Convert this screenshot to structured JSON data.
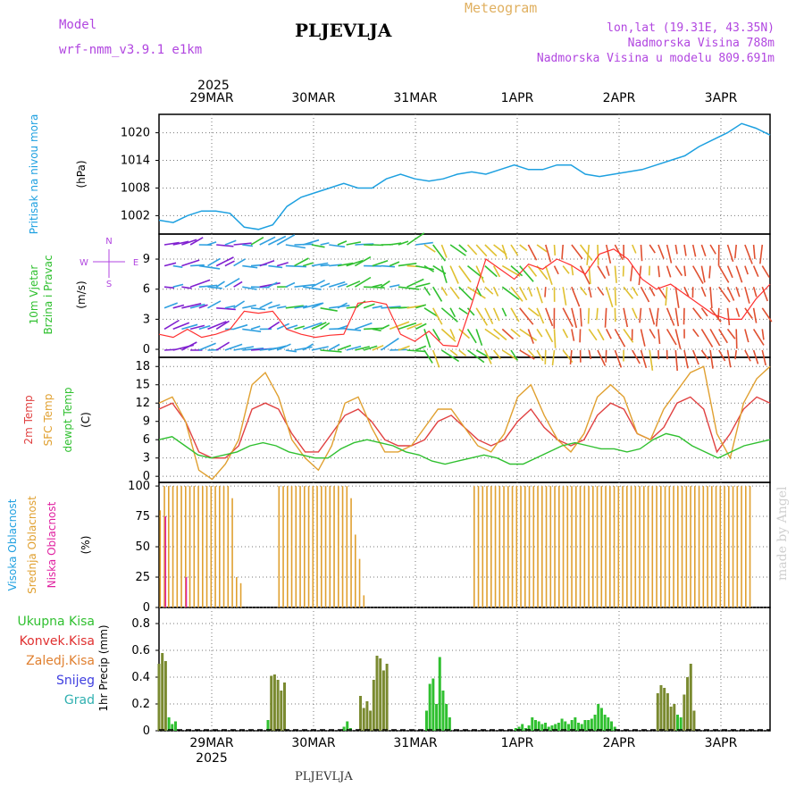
{
  "header": {
    "model_label": "Model",
    "model_version": "wrf-nmm_v3.9.1  e1km",
    "station": "PLJEVLJA",
    "title": "Meteogram",
    "lonlat": "lon,lat (19.31E, 43.35N)",
    "altitude": "Nadmorska Visina 788m",
    "model_altitude": "Nadmorska Visina u modelu 809.691m",
    "footer_station": "PLJEVLJA",
    "made_by": "made by Angel"
  },
  "chart_data": [
    {
      "type": "line",
      "panel": "pressure",
      "x_start": "2025-03-28T12:00",
      "step_hours": 3,
      "years": "2025",
      "days": [
        "29MAR",
        "30MAR",
        "31MAR",
        "1APR",
        "2APR",
        "3APR"
      ],
      "ylabel": "Pritisak na nivou mora",
      "unit": "(hPa)",
      "yticks": [
        1002,
        1008,
        1014,
        1020
      ],
      "ylim": [
        998,
        1024
      ],
      "series": [
        {
          "color": "#1da0e0",
          "values": [
            1001,
            1000.5,
            1002,
            1003,
            1003,
            1002.5,
            999.5,
            999,
            1000,
            1004,
            1006,
            1007,
            1008,
            1009,
            1008,
            1008,
            1010,
            1011,
            1010,
            1009.5,
            1010,
            1011,
            1011.5,
            1011,
            1012,
            1013,
            1012,
            1012,
            1013,
            1013,
            1011,
            1010.5,
            1011,
            1011.5,
            1012,
            1013,
            1014,
            1015,
            1017,
            1018.5,
            1020,
            1022,
            1021,
            1019.5
          ]
        }
      ]
    },
    {
      "type": "line",
      "panel": "wind",
      "ylabel": "10m Vjetar Brzina i Pravac",
      "unit": "(m/s)",
      "compass": {
        "n": "N",
        "w": "W",
        "e": "E",
        "s": "S"
      },
      "yticks": [
        0,
        3,
        6,
        9
      ],
      "ylim": [
        -0.8,
        11.5
      ],
      "series": [
        {
          "color": "#111111",
          "values": [
            null,
            null,
            null,
            null,
            null,
            null,
            null,
            null,
            null,
            null,
            null,
            null,
            null,
            null,
            null,
            null,
            null,
            null,
            null,
            null,
            null,
            null,
            null,
            null,
            null,
            null,
            null,
            null,
            null,
            null,
            null,
            null,
            null,
            null,
            null,
            null,
            null,
            null,
            null,
            null,
            null,
            null,
            null,
            null
          ]
        },
        {
          "color": "#ff3030",
          "values": [
            1.5,
            1.2,
            2,
            1.2,
            1.5,
            2,
            3.8,
            3.6,
            3.8,
            2,
            1.5,
            1.2,
            1.4,
            1.5,
            4.6,
            4.8,
            4.5,
            1.5,
            0.8,
            1.8,
            0.4,
            0.3,
            4.5,
            9,
            8,
            7,
            8.5,
            8,
            9,
            8.4,
            7.5,
            9.5,
            10,
            9,
            7,
            6,
            6.5,
            5.5,
            4.5,
            3.5,
            3,
            3,
            5,
            6.5
          ]
        }
      ]
    },
    {
      "type": "line",
      "panel": "temperature",
      "ylabels": [
        "2m Temp",
        "SFC Temp",
        "dewpt Temp"
      ],
      "unit": "(C)",
      "yticks": [
        0,
        3,
        6,
        9,
        12,
        15,
        18
      ],
      "ylim": [
        -1,
        19.5
      ],
      "series": [
        {
          "name": "2m Temp",
          "color": "#e04040",
          "values": [
            11,
            12,
            9,
            4,
            3,
            3,
            5,
            11,
            12,
            11,
            7,
            4,
            4,
            7,
            10,
            11,
            9,
            6,
            5,
            5,
            6,
            9,
            10,
            8,
            6,
            5,
            6,
            9,
            11,
            8,
            6,
            5,
            6,
            10,
            12,
            11,
            7,
            6,
            8,
            12,
            13,
            11,
            4,
            7,
            11,
            13,
            12
          ]
        },
        {
          "name": "SFC Temp",
          "color": "#e0a030",
          "values": [
            12,
            13,
            9,
            1,
            -0.5,
            2,
            6,
            15,
            17,
            13,
            6,
            3,
            1,
            5,
            12,
            13,
            8,
            4,
            4,
            5,
            8,
            11,
            11,
            8,
            5,
            4,
            7,
            13,
            15,
            10,
            6,
            4,
            7,
            13,
            15,
            13,
            7,
            6,
            11,
            14,
            17,
            18,
            7,
            3,
            12,
            16,
            18
          ]
        },
        {
          "name": "dewpt Temp",
          "color": "#30c030",
          "values": [
            6,
            6.5,
            5,
            3.5,
            3,
            3.5,
            4,
            5,
            5.5,
            5,
            4,
            3.5,
            3,
            3,
            4.5,
            5.5,
            6,
            5.5,
            5,
            4,
            3.5,
            2.5,
            2,
            2.5,
            3,
            3.5,
            3,
            2,
            2,
            3,
            4,
            5,
            5.5,
            5,
            4.5,
            4.5,
            4,
            4.5,
            6,
            7,
            6.5,
            5,
            4,
            3,
            4,
            5,
            5.5,
            6
          ]
        }
      ]
    },
    {
      "type": "bar",
      "panel": "cloud",
      "ylabels": [
        "Visoka Oblacnost",
        "Srednja Oblacnost",
        "Niska Oblacnost"
      ],
      "unit": "(%)",
      "yticks": [
        0,
        25,
        50,
        75,
        100
      ],
      "ylim": [
        0,
        103
      ],
      "series": [
        {
          "name": "Visoka Oblacnost",
          "color": "#20a0e0",
          "values": [
            0,
            0,
            0,
            0,
            0,
            0,
            0,
            0,
            0,
            0,
            0,
            0,
            0,
            0,
            0,
            0,
            0,
            0,
            0,
            0,
            0,
            0,
            0,
            0,
            0,
            0,
            0,
            0,
            0,
            0,
            0,
            0,
            0,
            0,
            0,
            0,
            0,
            0,
            0,
            0,
            0,
            0,
            0,
            0,
            0,
            0,
            0,
            0,
            0,
            0,
            0,
            0,
            0,
            0,
            0,
            0,
            0,
            0,
            0,
            0,
            0,
            0,
            0,
            0,
            0,
            0,
            0,
            0,
            0,
            0,
            0,
            0,
            0,
            0,
            0,
            0,
            0,
            0,
            0,
            0,
            0,
            0,
            0,
            0,
            0,
            0,
            0,
            0,
            0,
            0,
            0,
            0,
            0,
            0,
            0,
            0,
            0,
            0,
            0,
            0,
            0,
            0,
            0,
            0,
            0,
            0,
            0,
            0,
            0,
            0,
            0,
            0,
            0,
            0,
            0,
            0,
            0,
            0,
            0,
            0,
            0,
            0,
            0,
            0,
            0,
            0,
            0,
            0,
            0,
            0,
            0,
            0,
            0,
            0,
            0,
            0,
            0,
            0,
            0,
            0,
            0,
            0,
            0,
            0
          ]
        },
        {
          "name": "Srednja Oblacnost",
          "color": "#e0a030",
          "values": [
            80,
            100,
            100,
            100,
            100,
            100,
            100,
            100,
            100,
            100,
            100,
            100,
            100,
            100,
            100,
            100,
            100,
            90,
            25,
            20,
            0,
            0,
            0,
            0,
            0,
            0,
            0,
            0,
            100,
            100,
            100,
            100,
            100,
            100,
            100,
            100,
            100,
            100,
            100,
            100,
            100,
            100,
            100,
            100,
            100,
            90,
            60,
            40,
            10,
            0,
            0,
            0,
            0,
            0,
            0,
            0,
            0,
            0,
            0,
            0,
            0,
            0,
            0,
            0,
            0,
            0,
            0,
            0,
            0,
            0,
            0,
            0,
            0,
            0,
            100,
            100,
            100,
            100,
            100,
            100,
            100,
            100,
            100,
            100,
            100,
            100,
            100,
            100,
            100,
            100,
            100,
            100,
            100,
            100,
            100,
            100,
            100,
            100,
            100,
            100,
            100,
            100,
            100,
            100,
            100,
            100,
            100,
            100,
            100,
            100,
            100,
            100,
            100,
            100,
            100,
            100,
            100,
            100,
            100,
            100,
            100,
            100,
            100,
            100,
            100,
            100,
            100,
            100,
            100,
            100,
            100,
            100,
            100,
            100,
            100,
            100,
            100,
            100,
            100,
            100,
            0,
            0,
            0,
            0,
            0
          ]
        },
        {
          "name": "Niska Oblacnost",
          "color": "#e020a0",
          "values": [
            0,
            75,
            0,
            0,
            0,
            0,
            25,
            0,
            0,
            0,
            0,
            0,
            0,
            0,
            0,
            0,
            0,
            0,
            0,
            0,
            0,
            0,
            0,
            0,
            0,
            0,
            0,
            0,
            0,
            0,
            0,
            0,
            0,
            0,
            0,
            0,
            0,
            0,
            0,
            0,
            0,
            0,
            0,
            0,
            0,
            0,
            0,
            0,
            0,
            0,
            0,
            0,
            0,
            0,
            0,
            0,
            0,
            0,
            0,
            0,
            0,
            0,
            0,
            0,
            0,
            0,
            0,
            0,
            0,
            0,
            0,
            0,
            0,
            0,
            0,
            0,
            0,
            0,
            0,
            0,
            0,
            0,
            0,
            0,
            0,
            0,
            0,
            0,
            0,
            0,
            0,
            0,
            0,
            0,
            0,
            0,
            0,
            0,
            0,
            0,
            0,
            0,
            0,
            0,
            0,
            0,
            0,
            0,
            0,
            0,
            0,
            0,
            0,
            0,
            0,
            0,
            0,
            0,
            0,
            0,
            0,
            0,
            0,
            0,
            0,
            0,
            0,
            0,
            0,
            0,
            0,
            0,
            0,
            0,
            0,
            0,
            0,
            0,
            0,
            0,
            0,
            0,
            0,
            0,
            0,
            0,
            0,
            0
          ]
        }
      ]
    },
    {
      "type": "bar",
      "panel": "precipitation",
      "ylabel": "1hr Precip",
      "unit": "(mm)",
      "legend": [
        "Ukupna Kisa",
        "Konvek.Kisa",
        "Zaledj.Kisa",
        "Snijeg",
        "Grad"
      ],
      "legend_colors": [
        "#30c030",
        "#e03030",
        "#e08030",
        "#4040e0",
        "#30b0b0"
      ],
      "yticks": [
        0,
        0.2,
        0.4,
        0.6,
        0.8
      ],
      "ylim": [
        0,
        0.92
      ],
      "series": [
        {
          "name": "Ukupna Kisa",
          "color": "#30c030",
          "values": [
            0.5,
            0.58,
            0.52,
            0.1,
            0.05,
            0.07,
            0,
            0,
            0,
            0,
            0,
            0,
            0,
            0,
            0,
            0,
            0,
            0,
            0,
            0,
            0,
            0,
            0,
            0,
            0,
            0,
            0,
            0,
            0,
            0,
            0,
            0,
            0,
            0.08,
            0.41,
            0.42,
            0.38,
            0.3,
            0.36,
            0,
            0,
            0,
            0,
            0,
            0,
            0,
            0,
            0,
            0,
            0,
            0,
            0,
            0,
            0,
            0,
            0,
            0.03,
            0.07,
            0.02,
            0,
            0,
            0.26,
            0.17,
            0.22,
            0.15,
            0.38,
            0.56,
            0.54,
            0.45,
            0.5,
            0,
            0,
            0,
            0,
            0,
            0,
            0,
            0,
            0,
            0,
            0,
            0.15,
            0.35,
            0.39,
            0.2,
            0.55,
            0.3,
            0.2,
            0.1,
            0,
            0,
            0,
            0,
            0,
            0,
            0,
            0,
            0,
            0,
            0,
            0,
            0,
            0,
            0,
            0,
            0,
            0,
            0,
            0.02,
            0.03,
            0.05,
            0.02,
            0.04,
            0.1,
            0.08,
            0.07,
            0.05,
            0.06,
            0.03,
            0.04,
            0.05,
            0.06,
            0.09,
            0.07,
            0.05,
            0.08,
            0.1,
            0.06,
            0.05,
            0.08,
            0.08,
            0.09,
            0.12,
            0.2,
            0.17,
            0.12,
            0.1,
            0.07,
            0.03,
            0,
            0,
            0,
            0,
            0,
            0,
            0,
            0,
            0,
            0,
            0,
            0,
            0.28,
            0.34,
            0.32,
            0.28,
            0.18,
            0.2,
            0.12,
            0.1,
            0.27,
            0.4,
            0.5,
            0.15,
            0,
            0,
            0,
            0,
            0,
            0,
            0,
            0,
            0,
            0,
            0,
            0,
            0,
            0,
            0,
            0,
            0,
            0,
            0,
            0,
            0,
            0,
            0
          ]
        }
      ]
    }
  ]
}
